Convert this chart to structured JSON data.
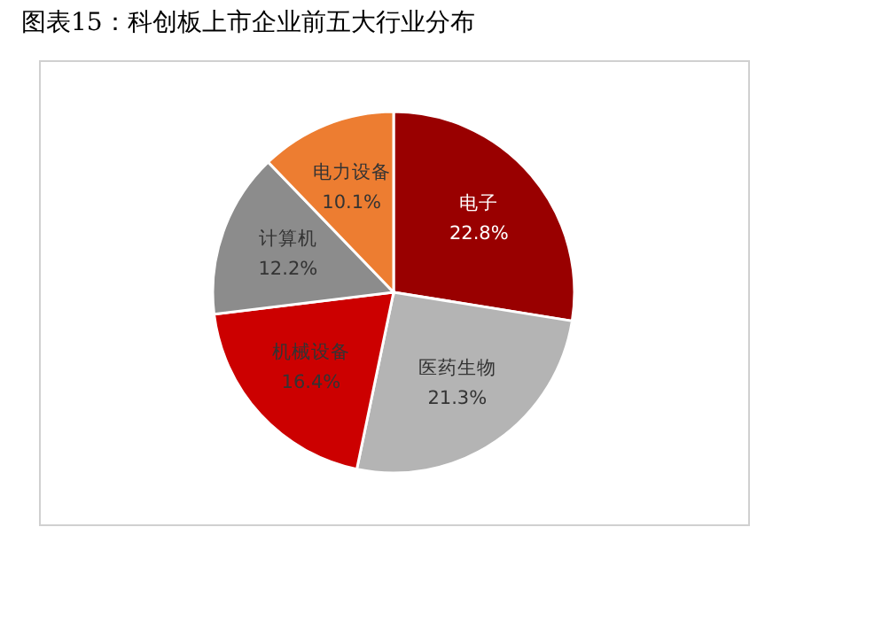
{
  "chart_data": {
    "type": "pie",
    "title": "图表15：科创板上市企业前五大行业分布",
    "categories": [
      "电子",
      "医药生物",
      "机械设备",
      "计算机",
      "电力设备"
    ],
    "values": [
      22.8,
      21.3,
      16.4,
      12.2,
      10.1
    ],
    "colors": [
      "#990000",
      "#b4b4b4",
      "#cc0000",
      "#8c8c8c",
      "#ed7d31"
    ],
    "value_labels": [
      "22.8%",
      "21.3%",
      "16.4%",
      "12.2%",
      "10.1%"
    ],
    "legend": false
  }
}
